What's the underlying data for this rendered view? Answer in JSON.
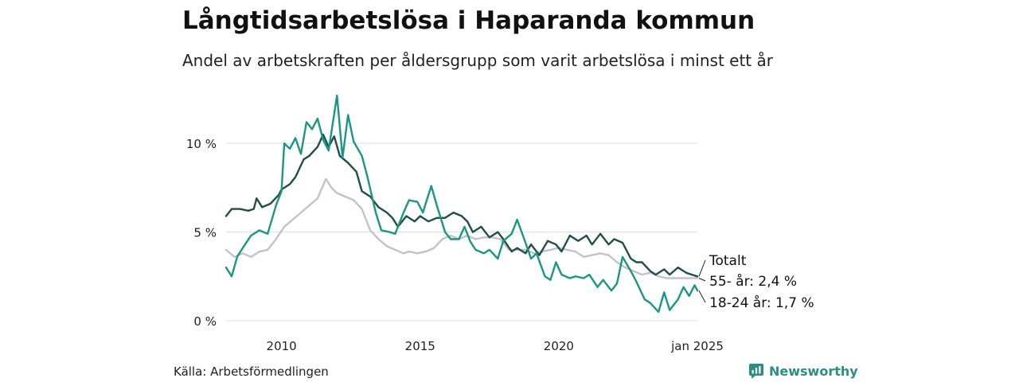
{
  "title": "Långtidsarbetslösa i Haparanda kommun",
  "subtitle": "Andel av arbetskraften per åldersgrupp som varit arbetslösa i minst ett år",
  "source": "Källa: Arbetsförmedlingen",
  "brand": "Newsworthy",
  "colors": {
    "total": "#1f4f48",
    "age55": "#c5c0cc",
    "age1824": "#1a9683",
    "grid": "#dddddd",
    "brand": "#2a8f82"
  },
  "chart_data": {
    "type": "line",
    "x_range": [
      2008.0,
      2025.0
    ],
    "ylim": [
      0,
      12.7
    ],
    "y_ticks": [
      {
        "value": 0,
        "label": "0 %"
      },
      {
        "value": 5,
        "label": "5 %"
      },
      {
        "value": 10,
        "label": "10 %"
      }
    ],
    "x_ticks": [
      {
        "value": 2010,
        "label": "2010"
      },
      {
        "value": 2015,
        "label": "2015"
      },
      {
        "value": 2020,
        "label": "2020"
      },
      {
        "value": 2025,
        "label": "jan 2025"
      }
    ],
    "series": [
      {
        "name": "Totalt",
        "end_label": "Totalt",
        "color_key": "total",
        "points": [
          [
            2008.0,
            5.9
          ],
          [
            2008.2,
            6.3
          ],
          [
            2008.5,
            6.3
          ],
          [
            2008.8,
            6.2
          ],
          [
            2009.0,
            6.3
          ],
          [
            2009.1,
            6.9
          ],
          [
            2009.3,
            6.4
          ],
          [
            2009.6,
            6.6
          ],
          [
            2009.9,
            7.1
          ],
          [
            2010.0,
            7.4
          ],
          [
            2010.3,
            7.7
          ],
          [
            2010.5,
            8.1
          ],
          [
            2010.8,
            9.1
          ],
          [
            2011.0,
            9.3
          ],
          [
            2011.3,
            9.8
          ],
          [
            2011.5,
            10.5
          ],
          [
            2011.7,
            9.8
          ],
          [
            2011.9,
            10.4
          ],
          [
            2012.1,
            9.3
          ],
          [
            2012.4,
            8.9
          ],
          [
            2012.7,
            8.4
          ],
          [
            2012.9,
            7.3
          ],
          [
            2013.2,
            7.0
          ],
          [
            2013.5,
            6.4
          ],
          [
            2013.8,
            6.1
          ],
          [
            2014.0,
            5.8
          ],
          [
            2014.2,
            5.3
          ],
          [
            2014.5,
            5.9
          ],
          [
            2014.8,
            5.6
          ],
          [
            2015.0,
            5.9
          ],
          [
            2015.3,
            5.6
          ],
          [
            2015.6,
            5.8
          ],
          [
            2015.9,
            5.8
          ],
          [
            2016.2,
            6.1
          ],
          [
            2016.5,
            5.9
          ],
          [
            2016.7,
            5.6
          ],
          [
            2016.9,
            5.0
          ],
          [
            2017.2,
            5.3
          ],
          [
            2017.5,
            4.7
          ],
          [
            2017.8,
            5.0
          ],
          [
            2018.0,
            4.6
          ],
          [
            2018.3,
            3.9
          ],
          [
            2018.5,
            4.1
          ],
          [
            2018.8,
            3.8
          ],
          [
            2019.0,
            4.3
          ],
          [
            2019.3,
            3.7
          ],
          [
            2019.6,
            4.5
          ],
          [
            2019.9,
            4.3
          ],
          [
            2020.1,
            3.9
          ],
          [
            2020.4,
            4.8
          ],
          [
            2020.7,
            4.5
          ],
          [
            2021.0,
            4.8
          ],
          [
            2021.2,
            4.3
          ],
          [
            2021.5,
            4.9
          ],
          [
            2021.8,
            4.3
          ],
          [
            2022.0,
            4.6
          ],
          [
            2022.3,
            4.4
          ],
          [
            2022.6,
            3.5
          ],
          [
            2022.8,
            3.3
          ],
          [
            2023.0,
            3.3
          ],
          [
            2023.3,
            2.8
          ],
          [
            2023.5,
            2.6
          ],
          [
            2023.8,
            2.9
          ],
          [
            2024.0,
            2.6
          ],
          [
            2024.3,
            3.0
          ],
          [
            2024.6,
            2.7
          ],
          [
            2024.8,
            2.6
          ],
          [
            2025.0,
            2.5
          ]
        ]
      },
      {
        "name": "55- år",
        "end_label": "55- år: 2,4 %",
        "color_key": "age55",
        "points": [
          [
            2008.0,
            4.0
          ],
          [
            2008.3,
            3.6
          ],
          [
            2008.6,
            3.8
          ],
          [
            2008.9,
            3.6
          ],
          [
            2009.2,
            3.9
          ],
          [
            2009.5,
            4.0
          ],
          [
            2009.8,
            4.6
          ],
          [
            2010.1,
            5.3
          ],
          [
            2010.4,
            5.7
          ],
          [
            2010.7,
            6.1
          ],
          [
            2011.0,
            6.5
          ],
          [
            2011.3,
            6.9
          ],
          [
            2011.6,
            8.0
          ],
          [
            2011.8,
            7.5
          ],
          [
            2012.0,
            7.2
          ],
          [
            2012.3,
            7.0
          ],
          [
            2012.6,
            6.8
          ],
          [
            2012.9,
            6.3
          ],
          [
            2013.2,
            5.1
          ],
          [
            2013.5,
            4.6
          ],
          [
            2013.8,
            4.2
          ],
          [
            2014.1,
            4.0
          ],
          [
            2014.4,
            3.8
          ],
          [
            2014.6,
            3.9
          ],
          [
            2014.9,
            3.8
          ],
          [
            2015.2,
            3.9
          ],
          [
            2015.5,
            4.1
          ],
          [
            2015.8,
            4.6
          ],
          [
            2016.1,
            4.8
          ],
          [
            2016.4,
            4.6
          ],
          [
            2016.7,
            4.8
          ],
          [
            2017.0,
            4.6
          ],
          [
            2017.3,
            4.7
          ],
          [
            2017.6,
            4.7
          ],
          [
            2017.9,
            4.6
          ],
          [
            2018.2,
            4.0
          ],
          [
            2018.5,
            4.0
          ],
          [
            2018.8,
            4.0
          ],
          [
            2019.1,
            3.8
          ],
          [
            2019.4,
            3.9
          ],
          [
            2019.7,
            4.0
          ],
          [
            2020.0,
            4.1
          ],
          [
            2020.3,
            4.0
          ],
          [
            2020.6,
            3.9
          ],
          [
            2020.9,
            3.6
          ],
          [
            2021.2,
            3.7
          ],
          [
            2021.5,
            3.8
          ],
          [
            2021.8,
            3.7
          ],
          [
            2022.1,
            3.3
          ],
          [
            2022.4,
            3.0
          ],
          [
            2022.7,
            2.8
          ],
          [
            2023.0,
            2.6
          ],
          [
            2023.3,
            2.7
          ],
          [
            2023.6,
            2.5
          ],
          [
            2023.9,
            2.4
          ],
          [
            2024.2,
            2.4
          ],
          [
            2024.5,
            2.4
          ],
          [
            2024.8,
            2.4
          ],
          [
            2025.0,
            2.4
          ]
        ]
      },
      {
        "name": "18-24 år",
        "end_label": "18-24 år: 1,7 %",
        "color_key": "age1824",
        "points": [
          [
            2008.0,
            3.0
          ],
          [
            2008.2,
            2.5
          ],
          [
            2008.4,
            3.6
          ],
          [
            2008.6,
            4.1
          ],
          [
            2008.9,
            4.8
          ],
          [
            2009.2,
            5.1
          ],
          [
            2009.5,
            4.9
          ],
          [
            2009.8,
            6.5
          ],
          [
            2010.0,
            7.3
          ],
          [
            2010.1,
            10.0
          ],
          [
            2010.3,
            9.7
          ],
          [
            2010.5,
            10.3
          ],
          [
            2010.7,
            9.4
          ],
          [
            2010.9,
            11.2
          ],
          [
            2011.1,
            10.8
          ],
          [
            2011.3,
            11.4
          ],
          [
            2011.5,
            10.2
          ],
          [
            2011.7,
            9.6
          ],
          [
            2012.0,
            12.7
          ],
          [
            2012.2,
            9.2
          ],
          [
            2012.4,
            11.6
          ],
          [
            2012.6,
            10.1
          ],
          [
            2012.9,
            9.3
          ],
          [
            2013.1,
            8.1
          ],
          [
            2013.4,
            6.1
          ],
          [
            2013.6,
            5.1
          ],
          [
            2013.9,
            5.0
          ],
          [
            2014.1,
            4.9
          ],
          [
            2014.4,
            6.1
          ],
          [
            2014.6,
            6.8
          ],
          [
            2014.9,
            6.7
          ],
          [
            2015.1,
            6.1
          ],
          [
            2015.4,
            7.6
          ],
          [
            2015.6,
            6.5
          ],
          [
            2015.9,
            5.0
          ],
          [
            2016.1,
            4.6
          ],
          [
            2016.4,
            4.6
          ],
          [
            2016.6,
            5.3
          ],
          [
            2016.8,
            4.5
          ],
          [
            2017.0,
            4.0
          ],
          [
            2017.3,
            3.8
          ],
          [
            2017.5,
            4.0
          ],
          [
            2017.8,
            3.5
          ],
          [
            2018.0,
            4.5
          ],
          [
            2018.3,
            4.9
          ],
          [
            2018.5,
            5.7
          ],
          [
            2018.8,
            4.4
          ],
          [
            2019.0,
            3.5
          ],
          [
            2019.2,
            3.8
          ],
          [
            2019.5,
            2.5
          ],
          [
            2019.7,
            2.3
          ],
          [
            2019.9,
            3.3
          ],
          [
            2020.1,
            2.6
          ],
          [
            2020.4,
            2.4
          ],
          [
            2020.6,
            2.5
          ],
          [
            2020.9,
            2.4
          ],
          [
            2021.1,
            2.6
          ],
          [
            2021.4,
            1.9
          ],
          [
            2021.6,
            2.3
          ],
          [
            2021.9,
            1.7
          ],
          [
            2022.1,
            2.1
          ],
          [
            2022.3,
            3.6
          ],
          [
            2022.6,
            2.8
          ],
          [
            2022.8,
            2.2
          ],
          [
            2023.1,
            1.2
          ],
          [
            2023.3,
            1.0
          ],
          [
            2023.6,
            0.5
          ],
          [
            2023.8,
            1.6
          ],
          [
            2024.0,
            0.6
          ],
          [
            2024.3,
            1.2
          ],
          [
            2024.5,
            1.9
          ],
          [
            2024.7,
            1.4
          ],
          [
            2024.9,
            2.0
          ],
          [
            2025.0,
            1.7
          ]
        ]
      }
    ]
  }
}
